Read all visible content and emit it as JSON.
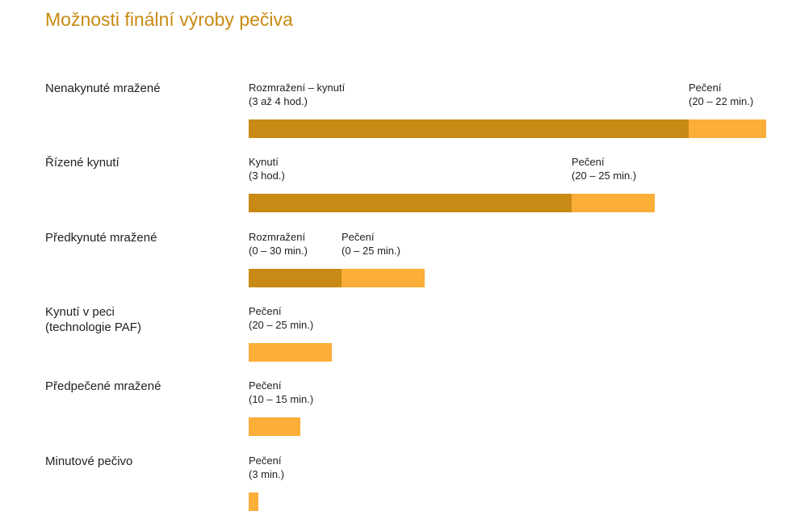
{
  "colors": {
    "title": "#c88a14",
    "phase_prep": "#c88a14",
    "phase_bake": "#fbae38"
  },
  "chart_data": {
    "type": "bar",
    "orientation": "horizontal",
    "stacked": true,
    "title": "Možnosti finální výroby pečiva",
    "rows": [
      {
        "label": "Nenakynuté mražené",
        "segments": [
          {
            "kind": "prep",
            "name": "Rozmražení – kynutí",
            "duration": "(3 až 4 hod.)",
            "value": 545
          },
          {
            "kind": "bake",
            "name": "Pečení",
            "duration": "(20 – 22 min.)",
            "value": 96
          }
        ]
      },
      {
        "label": "Řízené kynutí",
        "segments": [
          {
            "kind": "prep",
            "name": "Kynutí",
            "duration": "(3 hod.)",
            "value": 400
          },
          {
            "kind": "bake",
            "name": "Pečení",
            "duration": "(20 – 25 min.)",
            "value": 103
          }
        ]
      },
      {
        "label": "Předkynuté mražené",
        "segments": [
          {
            "kind": "prep",
            "name": "Rozmražení",
            "duration": "(0 – 30 min.)",
            "value": 115
          },
          {
            "kind": "bake",
            "name": "Pečení",
            "duration": "(0 – 25 min.)",
            "value": 103
          }
        ]
      },
      {
        "label": "Kynutí v peci\n(technologie PAF)",
        "segments": [
          {
            "kind": "bake",
            "name": "Pečení",
            "duration": "(20 – 25 min.)",
            "value": 103
          }
        ]
      },
      {
        "label": "Předpečené mražené",
        "segments": [
          {
            "kind": "bake",
            "name": "Pečení",
            "duration": "(10 – 15 min.)",
            "value": 64
          }
        ]
      },
      {
        "label": "Minutové pečivo",
        "segments": [
          {
            "kind": "bake",
            "name": "Pečení",
            "duration": "(3 min.)",
            "value": 12
          }
        ]
      }
    ]
  }
}
